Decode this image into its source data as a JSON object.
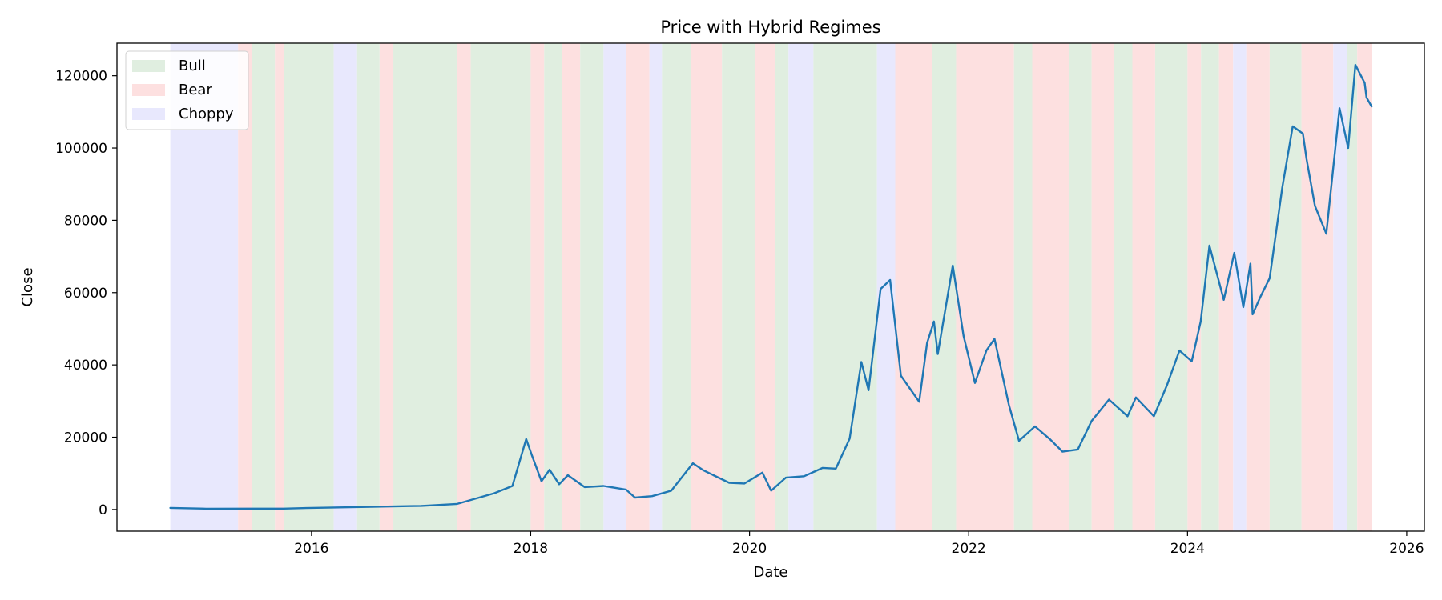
{
  "chart_data": {
    "type": "line",
    "title": "Price with Hybrid Regimes",
    "xlabel": "Date",
    "ylabel": "Close",
    "xlim": [
      "2014-03-23",
      "2026-03-01"
    ],
    "ylim": [
      -6000,
      129000
    ],
    "x_ticks": [
      "2016",
      "2018",
      "2020",
      "2022",
      "2024",
      "2026"
    ],
    "y_ticks": [
      0,
      20000,
      40000,
      60000,
      80000,
      100000,
      120000
    ],
    "grid": false,
    "legend": {
      "placement": "top-left",
      "entries": [
        {
          "label": "Bull",
          "color": "#e0eee0"
        },
        {
          "label": "Bear",
          "color": "#fde0e0"
        },
        {
          "label": "Choppy",
          "color": "#e8e8fd"
        }
      ]
    },
    "line_color": "#1f77b4",
    "series": [
      {
        "x": [
          "2014-09-17",
          "2015-01-15",
          "2015-06-01",
          "2015-10-01",
          "2016-01-01",
          "2016-06-15",
          "2017-01-01",
          "2017-05-01",
          "2017-09-01",
          "2017-11-01",
          "2017-12-17",
          "2018-01-05",
          "2018-02-06",
          "2018-03-05",
          "2018-04-06",
          "2018-05-05",
          "2018-06-30",
          "2018-09-01",
          "2018-11-15",
          "2018-12-15",
          "2019-02-10",
          "2019-04-15",
          "2019-06-26",
          "2019-08-01",
          "2019-10-25",
          "2019-12-15",
          "2020-02-13",
          "2020-03-13",
          "2020-05-01",
          "2020-07-01",
          "2020-09-01",
          "2020-10-15",
          "2020-11-30",
          "2021-01-08",
          "2021-02-01",
          "2021-03-13",
          "2021-04-14",
          "2021-05-20",
          "2021-07-20",
          "2021-08-15",
          "2021-09-07",
          "2021-09-20",
          "2021-11-09",
          "2021-12-15",
          "2022-01-22",
          "2022-03-01",
          "2022-03-28",
          "2022-05-15",
          "2022-06-18",
          "2022-08-10",
          "2022-10-01",
          "2022-11-10",
          "2022-12-31",
          "2023-02-15",
          "2023-04-14",
          "2023-06-15",
          "2023-07-13",
          "2023-09-11",
          "2023-10-25",
          "2023-12-05",
          "2024-01-15",
          "2024-02-14",
          "2024-03-14",
          "2024-05-01",
          "2024-06-05",
          "2024-07-05",
          "2024-07-29",
          "2024-08-05",
          "2024-09-01",
          "2024-10-01",
          "2024-11-12",
          "2024-12-17",
          "2025-01-20",
          "2025-02-01",
          "2025-03-01",
          "2025-04-08",
          "2025-05-22",
          "2025-06-20",
          "2025-07-14",
          "2025-08-14",
          "2025-08-20",
          "2025-09-06"
        ],
        "y": [
          450,
          210,
          230,
          240,
          430,
          690,
          1000,
          1550,
          4500,
          6500,
          19500,
          15000,
          7800,
          11000,
          7000,
          9500,
          6200,
          6500,
          5500,
          3300,
          3700,
          5200,
          12800,
          10800,
          7400,
          7200,
          10200,
          5200,
          8800,
          9200,
          11500,
          11300,
          19600,
          40800,
          33000,
          61000,
          63500,
          37000,
          29800,
          46000,
          52000,
          43000,
          67500,
          48000,
          35000,
          44000,
          47200,
          29000,
          19000,
          23000,
          19300,
          16000,
          16600,
          24500,
          30400,
          25800,
          31000,
          25800,
          34500,
          44000,
          41000,
          52000,
          73000,
          58000,
          71000,
          56000,
          68000,
          54000,
          59000,
          64000,
          89000,
          106000,
          104000,
          97000,
          84000,
          76300,
          111000,
          100000,
          123000,
          118000,
          114000,
          111500
        ]
      }
    ],
    "regimes": [
      {
        "start": "2014-09-17",
        "end": "2015-05-01",
        "regime": "Choppy"
      },
      {
        "start": "2015-05-01",
        "end": "2015-06-15",
        "regime": "Bear"
      },
      {
        "start": "2015-06-15",
        "end": "2015-09-01",
        "regime": "Bull"
      },
      {
        "start": "2015-09-01",
        "end": "2015-10-01",
        "regime": "Bear"
      },
      {
        "start": "2015-10-01",
        "end": "2016-03-15",
        "regime": "Bull"
      },
      {
        "start": "2016-03-15",
        "end": "2016-06-01",
        "regime": "Choppy"
      },
      {
        "start": "2016-06-01",
        "end": "2016-08-15",
        "regime": "Bull"
      },
      {
        "start": "2016-08-15",
        "end": "2016-09-30",
        "regime": "Bear"
      },
      {
        "start": "2016-09-30",
        "end": "2017-05-01",
        "regime": "Bull"
      },
      {
        "start": "2017-05-01",
        "end": "2017-06-15",
        "regime": "Bear"
      },
      {
        "start": "2017-06-15",
        "end": "2018-01-01",
        "regime": "Bull"
      },
      {
        "start": "2018-01-01",
        "end": "2018-02-15",
        "regime": "Bear"
      },
      {
        "start": "2018-02-15",
        "end": "2018-04-15",
        "regime": "Bull"
      },
      {
        "start": "2018-04-15",
        "end": "2018-06-15",
        "regime": "Bear"
      },
      {
        "start": "2018-06-15",
        "end": "2018-09-01",
        "regime": "Bull"
      },
      {
        "start": "2018-09-01",
        "end": "2018-11-15",
        "regime": "Choppy"
      },
      {
        "start": "2018-11-15",
        "end": "2019-02-01",
        "regime": "Bear"
      },
      {
        "start": "2019-02-01",
        "end": "2019-03-15",
        "regime": "Choppy"
      },
      {
        "start": "2019-03-15",
        "end": "2019-06-20",
        "regime": "Bull"
      },
      {
        "start": "2019-06-20",
        "end": "2019-10-01",
        "regime": "Bear"
      },
      {
        "start": "2019-10-01",
        "end": "2020-01-20",
        "regime": "Bull"
      },
      {
        "start": "2020-01-20",
        "end": "2020-03-25",
        "regime": "Bear"
      },
      {
        "start": "2020-03-25",
        "end": "2020-05-10",
        "regime": "Bull"
      },
      {
        "start": "2020-05-10",
        "end": "2020-08-01",
        "regime": "Choppy"
      },
      {
        "start": "2020-08-01",
        "end": "2021-03-01",
        "regime": "Bull"
      },
      {
        "start": "2021-03-01",
        "end": "2021-05-01",
        "regime": "Choppy"
      },
      {
        "start": "2021-05-01",
        "end": "2021-09-01",
        "regime": "Bear"
      },
      {
        "start": "2021-09-01",
        "end": "2021-11-20",
        "regime": "Bull"
      },
      {
        "start": "2021-11-20",
        "end": "2022-06-01",
        "regime": "Bear"
      },
      {
        "start": "2022-06-01",
        "end": "2022-08-01",
        "regime": "Bull"
      },
      {
        "start": "2022-08-01",
        "end": "2022-12-01",
        "regime": "Bear"
      },
      {
        "start": "2022-12-01",
        "end": "2023-02-15",
        "regime": "Bull"
      },
      {
        "start": "2023-02-15",
        "end": "2023-05-01",
        "regime": "Bear"
      },
      {
        "start": "2023-05-01",
        "end": "2023-07-01",
        "regime": "Bull"
      },
      {
        "start": "2023-07-01",
        "end": "2023-09-15",
        "regime": "Bear"
      },
      {
        "start": "2023-09-15",
        "end": "2024-01-01",
        "regime": "Bull"
      },
      {
        "start": "2024-01-01",
        "end": "2024-02-15",
        "regime": "Bear"
      },
      {
        "start": "2024-02-15",
        "end": "2024-04-15",
        "regime": "Bull"
      },
      {
        "start": "2024-04-15",
        "end": "2024-06-01",
        "regime": "Bear"
      },
      {
        "start": "2024-06-01",
        "end": "2024-07-15",
        "regime": "Choppy"
      },
      {
        "start": "2024-07-15",
        "end": "2024-10-01",
        "regime": "Bear"
      },
      {
        "start": "2024-10-01",
        "end": "2025-01-15",
        "regime": "Bull"
      },
      {
        "start": "2025-01-15",
        "end": "2025-05-01",
        "regime": "Bear"
      },
      {
        "start": "2025-05-01",
        "end": "2025-06-15",
        "regime": "Choppy"
      },
      {
        "start": "2025-06-15",
        "end": "2025-07-20",
        "regime": "Bull"
      },
      {
        "start": "2025-07-20",
        "end": "2025-09-06",
        "regime": "Bear"
      }
    ]
  }
}
